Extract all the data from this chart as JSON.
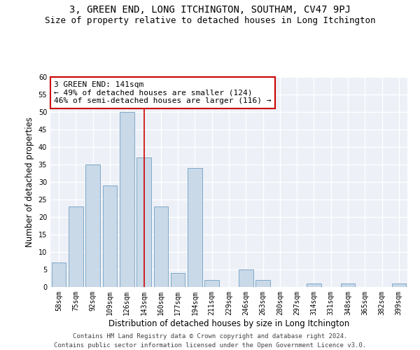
{
  "title": "3, GREEN END, LONG ITCHINGTON, SOUTHAM, CV47 9PJ",
  "subtitle": "Size of property relative to detached houses in Long Itchington",
  "xlabel": "Distribution of detached houses by size in Long Itchington",
  "ylabel": "Number of detached properties",
  "categories": [
    "58sqm",
    "75sqm",
    "92sqm",
    "109sqm",
    "126sqm",
    "143sqm",
    "160sqm",
    "177sqm",
    "194sqm",
    "211sqm",
    "229sqm",
    "246sqm",
    "263sqm",
    "280sqm",
    "297sqm",
    "314sqm",
    "331sqm",
    "348sqm",
    "365sqm",
    "382sqm",
    "399sqm"
  ],
  "values": [
    7,
    23,
    35,
    29,
    50,
    37,
    23,
    4,
    34,
    2,
    0,
    5,
    2,
    0,
    0,
    1,
    0,
    1,
    0,
    0,
    1
  ],
  "bar_color": "#c9d9e8",
  "bar_edge_color": "#7fa8c9",
  "vline_x": 5,
  "annotation_title": "3 GREEN END: 141sqm",
  "annotation_line1": "← 49% of detached houses are smaller (124)",
  "annotation_line2": "46% of semi-detached houses are larger (116) →",
  "annotation_box_color": "#ffffff",
  "annotation_border_color": "#cc0000",
  "vline_color": "#cc0000",
  "ylim": [
    0,
    60
  ],
  "yticks": [
    0,
    5,
    10,
    15,
    20,
    25,
    30,
    35,
    40,
    45,
    50,
    55,
    60
  ],
  "background_color": "#edf1f7",
  "footer_line1": "Contains HM Land Registry data © Crown copyright and database right 2024.",
  "footer_line2": "Contains public sector information licensed under the Open Government Licence v3.0.",
  "title_fontsize": 10,
  "subtitle_fontsize": 9,
  "xlabel_fontsize": 8.5,
  "ylabel_fontsize": 8.5,
  "tick_fontsize": 7,
  "annotation_fontsize": 8,
  "footer_fontsize": 6.5
}
